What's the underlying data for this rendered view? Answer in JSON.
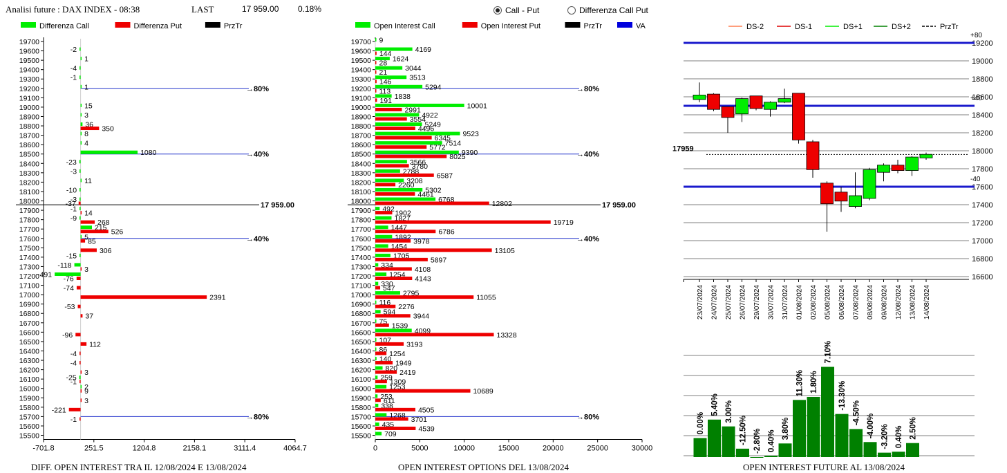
{
  "header": {
    "title": "Analisi future : DAX INDEX - 08:38",
    "last_label": "LAST",
    "last_value": "17 959.00",
    "change": "0.18%",
    "radio_call_put": "Call - Put",
    "radio_diff": "Differenza Call Put",
    "radio_selected": "call-put"
  },
  "colors": {
    "green": "#00ee00",
    "red": "#ee0000",
    "blue": "#0000dd",
    "darkgreen": "#008000",
    "black": "#000000"
  },
  "chart_data": [
    {
      "type": "bar",
      "title": "DIFF. OPEN INTEREST TRA IL 12/08/2024 E 13/08/2024",
      "legend": [
        {
          "name": "Differenza Call",
          "color": "#00ee00"
        },
        {
          "name": "Differenza Put",
          "color": "#ee0000"
        },
        {
          "name": "PrzTr",
          "color": "#000000"
        }
      ],
      "xlim": [
        -701.8,
        4064.7
      ],
      "xticks": [
        "-701.8",
        "251.5",
        "1204.8",
        "2158.1",
        "3111.4",
        "4064.7"
      ],
      "strikes": [
        19700,
        19600,
        19500,
        19400,
        19300,
        19200,
        19100,
        19000,
        18900,
        18800,
        18700,
        18600,
        18500,
        18400,
        18300,
        18200,
        18100,
        18000,
        17900,
        17800,
        17700,
        17600,
        17500,
        17400,
        17300,
        17200,
        17100,
        17000,
        16900,
        16800,
        16700,
        16600,
        16500,
        16400,
        16300,
        16200,
        16100,
        16000,
        15900,
        15800,
        15700,
        15600,
        15500
      ],
      "call": {
        "19600": -2,
        "19500": 1,
        "19400": -4,
        "19300": -1,
        "19200": 1,
        "19000": 15,
        "18900": 3,
        "18800": 36,
        "18700": 8,
        "18600": 4,
        "18500": 1080,
        "18400": -23,
        "18300": -3,
        "18200": 11,
        "18100": -10,
        "18000": -3,
        "17900": -1,
        "17800": -9,
        "17700": 215,
        "17600": 5,
        "17400": -15,
        "17300": -118,
        "17200": -491,
        "16100": -25,
        "16000": 2
      },
      "put": {
        "18800": 350,
        "18000": -37,
        "17900": 14,
        "17800": 268,
        "17700": 526,
        "17600": 85,
        "17500": 306,
        "17300": 3,
        "17200": -76,
        "17100": -74,
        "17000": 2391,
        "16900": -53,
        "16800": 37,
        "16600": -96,
        "16500": 112,
        "16400": -4,
        "16300": -4,
        "16200": 3,
        "16100": -1,
        "16000": 9,
        "15900": 3,
        "15800": -221,
        "15700": -1
      },
      "ref_lines": [
        {
          "label": "80%",
          "strike": 19200
        },
        {
          "label": "40%",
          "strike": 18500
        },
        {
          "label": "40%",
          "strike": 17600
        },
        {
          "label": "80%",
          "strike": 15700
        }
      ],
      "price_label": "17 959.00",
      "price": 17959
    },
    {
      "type": "bar",
      "title": "OPEN INTEREST OPTIONS DEL 13/08/2024",
      "legend": [
        {
          "name": "Open Interest Call",
          "color": "#00ee00"
        },
        {
          "name": "Open Interest Put",
          "color": "#ee0000"
        },
        {
          "name": "PrzTr",
          "color": "#000000"
        },
        {
          "name": "VA",
          "color": "#0000dd"
        }
      ],
      "xlim": [
        0,
        30000
      ],
      "xticks": [
        "0",
        "5000",
        "10000",
        "15000",
        "20000",
        "25000",
        "30000"
      ],
      "call": {
        "19700": 9,
        "19600": 4169,
        "19500": 1624,
        "19400": 3044,
        "19300": 3513,
        "19200": 5294,
        "19100": 1838,
        "19000": 10001,
        "18900": 4922,
        "18800": 5249,
        "18700": 9523,
        "18600": 7514,
        "18500": 9390,
        "18400": 3566,
        "18300": 2788,
        "18200": 3208,
        "18100": 5302,
        "18000": 6768,
        "17900": 492,
        "17800": 1827,
        "17700": 1447,
        "17600": 1892,
        "17500": 1454,
        "17400": 1705,
        "17300": 334,
        "17200": 1254,
        "17100": 330,
        "17000": 2795,
        "16900": 116,
        "16800": 594,
        "16700": 75,
        "16600": 4099,
        "16500": 107,
        "16400": 86,
        "16300": 140,
        "16200": 820,
        "16100": 259,
        "16000": 1253,
        "15900": 253,
        "15800": 338,
        "15700": 1268,
        "15600": 435,
        "15500": 709
      },
      "put": {
        "19600": 144,
        "19500": 28,
        "19400": 21,
        "19300": 146,
        "19200": 113,
        "19100": 191,
        "19000": 2991,
        "18900": 3554,
        "18800": 4496,
        "18700": 6345,
        "18600": 5772,
        "18500": 8025,
        "18400": 3780,
        "18300": 6587,
        "18200": 2260,
        "18100": 4461,
        "18000": 12802,
        "17900": 1902,
        "17800": 19719,
        "17700": 6786,
        "17600": 3978,
        "17500": 13105,
        "17400": 5897,
        "17300": 4108,
        "17200": 4143,
        "17100": 547,
        "17000": 11055,
        "16900": 2276,
        "16800": 3944,
        "16700": 1539,
        "16600": 13328,
        "16500": 3193,
        "16400": 1254,
        "16300": 1949,
        "16200": 2419,
        "16100": 1309,
        "16000": 10689,
        "15900": 611,
        "15800": 4505,
        "15700": 3701,
        "15600": 4539
      },
      "ref_lines": [
        {
          "label": "80%",
          "strike": 19200
        },
        {
          "label": "40%",
          "strike": 18500
        },
        {
          "label": "40%",
          "strike": 17600
        },
        {
          "label": "80%",
          "strike": 15700
        }
      ],
      "price_label": "17 959.00",
      "price": 17959
    },
    {
      "type": "candlestick",
      "legend": [
        {
          "name": "DS-2",
          "color": "#ff7f50"
        },
        {
          "name": "DS-1",
          "color": "#dd0000"
        },
        {
          "name": "DS+1",
          "color": "#00ee00"
        },
        {
          "name": "DS+2",
          "color": "#008000"
        },
        {
          "name": "PrzTr",
          "color": "#000000"
        }
      ],
      "ylim": [
        16600,
        19200
      ],
      "yticks": [
        "19200",
        "19000",
        "18800",
        "18600",
        "18400",
        "18200",
        "18000",
        "17800",
        "17600",
        "17400",
        "17200",
        "17000",
        "16800",
        "16600"
      ],
      "price_label": "17959",
      "price": 17959,
      "blue_lines": [
        {
          "value": 19200,
          "label": "+80"
        },
        {
          "value": 18500,
          "label": "+40"
        },
        {
          "value": 17600,
          "label": "-40"
        }
      ],
      "dates": [
        "23/07/2024",
        "24/07/2024",
        "25/07/2024",
        "26/07/2024",
        "29/07/2024",
        "30/07/2024",
        "31/07/2024",
        "01/08/2024",
        "02/08/2024",
        "05/08/2024",
        "06/08/2024",
        "07/08/2024",
        "08/08/2024",
        "09/08/2024",
        "12/08/2024",
        "13/08/2024",
        "14/08/2024"
      ],
      "candles": [
        {
          "o": 18570,
          "h": 18760,
          "l": 18540,
          "c": 18620
        },
        {
          "o": 18630,
          "h": 18640,
          "l": 18440,
          "c": 18460
        },
        {
          "o": 18490,
          "h": 18490,
          "l": 18200,
          "c": 18370
        },
        {
          "o": 18410,
          "h": 18590,
          "l": 18320,
          "c": 18580
        },
        {
          "o": 18610,
          "h": 18610,
          "l": 18450,
          "c": 18470
        },
        {
          "o": 18460,
          "h": 18550,
          "l": 18380,
          "c": 18540
        },
        {
          "o": 18540,
          "h": 18690,
          "l": 18530,
          "c": 18580
        },
        {
          "o": 18640,
          "h": 18640,
          "l": 18080,
          "c": 18120
        },
        {
          "o": 18100,
          "h": 18120,
          "l": 17700,
          "c": 17790
        },
        {
          "o": 17640,
          "h": 17660,
          "l": 17100,
          "c": 17410
        },
        {
          "o": 17540,
          "h": 17600,
          "l": 17320,
          "c": 17440
        },
        {
          "o": 17380,
          "h": 17760,
          "l": 17360,
          "c": 17500
        },
        {
          "o": 17470,
          "h": 17810,
          "l": 17450,
          "c": 17790
        },
        {
          "o": 17760,
          "h": 17860,
          "l": 17660,
          "c": 17840
        },
        {
          "o": 17840,
          "h": 17900,
          "l": 17750,
          "c": 17780
        },
        {
          "o": 17780,
          "h": 17940,
          "l": 17720,
          "c": 17930
        },
        {
          "o": 17920,
          "h": 17980,
          "l": 17900,
          "c": 17960
        }
      ]
    },
    {
      "type": "bar",
      "title": "OPEN INTEREST FUTURE AL 13/08/2024",
      "labels": [
        "0.00%",
        "5.40%",
        "3.00%",
        "-12.50%",
        "-2.80%",
        "0.40%",
        "3.80%",
        "11.30%",
        "1.80%",
        "7.10%",
        "-13.30%",
        "-4.50%",
        "-4.00%",
        "-3.20%",
        "0.40%",
        "2.50%"
      ],
      "values": [
        0.95,
        1.87,
        1.53,
        0.42,
        0.0,
        0.07,
        0.68,
        2.85,
        3.0,
        4.5,
        2.15,
        1.4,
        0.75,
        0.22,
        0.27,
        0.7
      ]
    }
  ]
}
